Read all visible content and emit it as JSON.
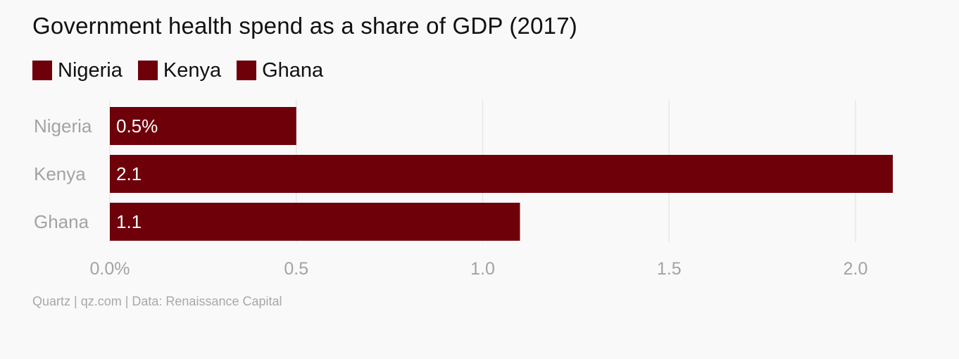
{
  "chart_data": {
    "type": "bar",
    "orientation": "horizontal",
    "title": "Government health spend as a share of GDP (2017)",
    "categories": [
      "Nigeria",
      "Kenya",
      "Ghana"
    ],
    "values": [
      0.5,
      2.1,
      1.1
    ],
    "data_labels": [
      "0.5%",
      "2.1",
      "1.1"
    ],
    "x_ticks": [
      0.0,
      0.5,
      1.0,
      1.5,
      2.0
    ],
    "x_tick_labels": [
      "0.0%",
      "0.5",
      "1.0",
      "1.5",
      "2.0"
    ],
    "xlim": [
      0,
      2.1
    ],
    "grid": true,
    "legend": {
      "placement": "top-left",
      "entries": [
        "Nigeria",
        "Kenya",
        "Ghana"
      ]
    },
    "colors": {
      "bar": "#6e000a",
      "grid": "#e3e3e3",
      "category_label": "#a3a3a3",
      "tick_label": "#a3a3a3",
      "data_label": "#ffffff"
    }
  },
  "source": "Quartz | qz.com | Data: Renaissance Capital"
}
